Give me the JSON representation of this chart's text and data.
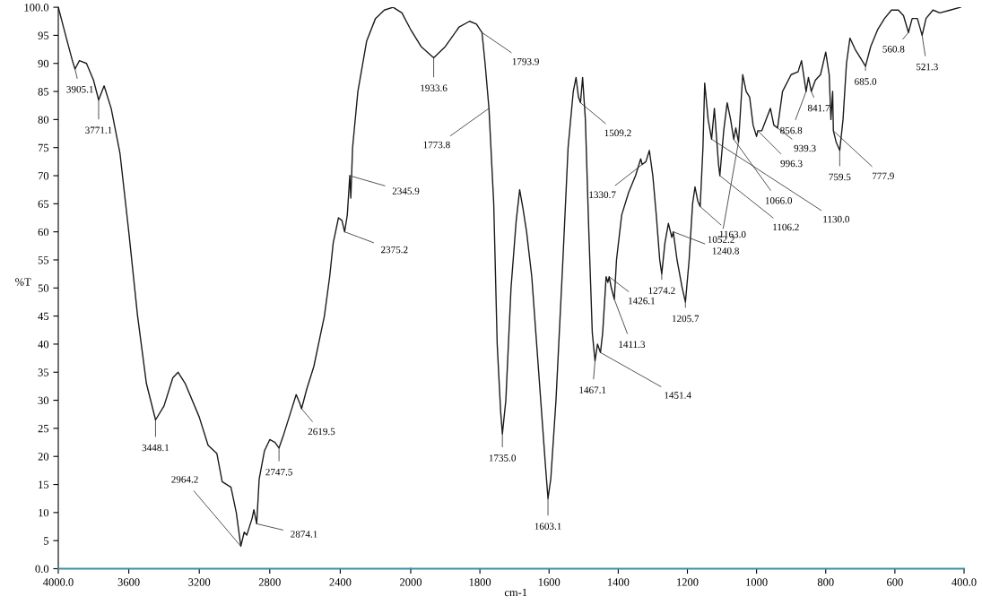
{
  "chart_data": [
    {
      "type": "line",
      "ylabel": "%T",
      "x": [
        4000,
        3950,
        3920,
        3905.1,
        3880,
        3840,
        3800,
        3771.1,
        3740,
        3700,
        3650,
        3600,
        3550,
        3500,
        3448.1,
        3400,
        3350,
        3320,
        3280,
        3200,
        3150,
        3100,
        3070,
        3020,
        2990,
        2964.2,
        2945,
        2930,
        2900,
        2890,
        2874.1,
        2860,
        2830,
        2800,
        2770,
        2747.5,
        2720,
        2680,
        2650,
        2630,
        2619.5,
        2590,
        2550,
        2510,
        2490,
        2460,
        2440,
        2410,
        2390,
        2375.2,
        2360,
        2345.9,
        2340,
        2330,
        2300,
        2250,
        2200,
        2150,
        2100,
        2050,
        2000
      ],
      "series": [
        {
          "color": "#1a1a1a",
          "values": [
            100,
            94,
            90.5,
            89,
            90.5,
            90,
            87,
            83.5,
            86,
            82,
            74,
            60,
            45,
            33,
            26.5,
            29,
            34,
            35,
            33,
            27,
            22,
            20.5,
            15.5,
            14.5,
            10,
            4,
            6.5,
            6,
            9,
            10.5,
            8,
            16,
            21,
            23,
            22.5,
            21.5,
            24,
            28,
            31,
            29.5,
            28.5,
            32,
            36,
            42,
            45,
            52,
            58,
            62.5,
            62,
            60,
            63,
            70,
            66,
            75,
            85,
            94,
            98,
            99.5,
            100,
            99,
            96
          ]
        }
      ],
      "xlim": [
        4000,
        2000
      ],
      "xticks": [
        {
          "value": 4000,
          "label": "4000.0"
        },
        3600,
        3200,
        2800,
        2400
      ],
      "ylim": [
        0,
        100
      ],
      "yticks": [
        {
          "value": 0,
          "label": "0.0"
        },
        5,
        10,
        15,
        20,
        25,
        30,
        35,
        40,
        45,
        50,
        55,
        60,
        65,
        70,
        75,
        80,
        85,
        90,
        95,
        {
          "value": 100,
          "label": "100.0"
        }
      ],
      "marker": "none",
      "line_style": "solid",
      "grid": false,
      "legend": false,
      "annotations": [
        {
          "text": "3905.1",
          "x": 3905.1,
          "y": 89
        },
        {
          "text": "3771.1",
          "x": 3771.1,
          "y": 83.5
        },
        {
          "text": "3448.1",
          "x": 3448.1,
          "y": 26.5
        },
        {
          "text": "2964.2",
          "x": 2964.2,
          "y": 4
        },
        {
          "text": "2874.1",
          "x": 2874.1,
          "y": 8
        },
        {
          "text": "2747.5",
          "x": 2747.5,
          "y": 21.5
        },
        {
          "text": "2619.5",
          "x": 2619.5,
          "y": 28.5
        },
        {
          "text": "2375.2",
          "x": 2375.2,
          "y": 60
        },
        {
          "text": "2345.9",
          "x": 2345.9,
          "y": 70
        }
      ]
    },
    {
      "type": "line",
      "xlabel": "cm-1",
      "tick_labels": "x",
      "x": [
        2000,
        1970,
        1933.6,
        1900,
        1860,
        1830,
        1810,
        1793.9,
        1785,
        1773.8,
        1760,
        1750,
        1740,
        1735.0,
        1725,
        1710,
        1695,
        1685,
        1675,
        1665,
        1650,
        1630,
        1610,
        1603.1,
        1595,
        1580,
        1560,
        1545,
        1530,
        1522,
        1515,
        1509.2,
        1503,
        1495,
        1485,
        1475,
        1467.1,
        1460,
        1451.4,
        1445,
        1435,
        1430,
        1426.1,
        1420,
        1411.3,
        1405,
        1390,
        1370,
        1350,
        1335,
        1330.7,
        1320,
        1310,
        1300,
        1290,
        1280,
        1274.2,
        1265,
        1255,
        1245,
        1240.8,
        1230,
        1215,
        1205.7,
        1195,
        1185,
        1178,
        1170,
        1163.0,
        1155,
        1150,
        1140,
        1130.0,
        1122,
        1110,
        1106.2,
        1095,
        1085,
        1075,
        1066.0,
        1060,
        1052.2,
        1040,
        1030,
        1020,
        1010,
        1000,
        996.3,
        985,
        960,
        950,
        939.3,
        925,
        900,
        880,
        870,
        856.8,
        850,
        841.7,
        830,
        815,
        800,
        790,
        785,
        780,
        777.9,
        770,
        759.5,
        750,
        740,
        730,
        715,
        700,
        685.0,
        670,
        650,
        630,
        610,
        590,
        575,
        560.8,
        550,
        535,
        521.3,
        510,
        490,
        470,
        440,
        410
      ],
      "series": [
        {
          "color": "#1a1a1a",
          "values": [
            96,
            93,
            91,
            93,
            96.5,
            97.5,
            97,
            95.5,
            90,
            82,
            65,
            40,
            28,
            24,
            30,
            50,
            62,
            67.5,
            64,
            60,
            52,
            35,
            18,
            12.5,
            16,
            30,
            55,
            75,
            85,
            87.5,
            84,
            83,
            87.5,
            80,
            60,
            42,
            37,
            40,
            38.5,
            42,
            52,
            51,
            52,
            50,
            48,
            55,
            63,
            67,
            70,
            73,
            72,
            72.5,
            74.5,
            70,
            63,
            55,
            52.5,
            58,
            61.5,
            59,
            60,
            55,
            50,
            47.5,
            55,
            65,
            68,
            65.5,
            64.5,
            75,
            86.5,
            80,
            76.5,
            82,
            72,
            70,
            78,
            83,
            80,
            76.5,
            78.5,
            76,
            88,
            85,
            84,
            79,
            77,
            78,
            78,
            82,
            79,
            78.5,
            85,
            88,
            88.5,
            90.5,
            85,
            87.5,
            85,
            87,
            88,
            92,
            88,
            80,
            85,
            78,
            76,
            74.5,
            80,
            90,
            94.5,
            92.5,
            91,
            89.5,
            93,
            96,
            98,
            99.5,
            99.5,
            98.5,
            95.5,
            98,
            98,
            95,
            98,
            99.5,
            99,
            99.5,
            100
          ]
        }
      ],
      "xlim": [
        2000,
        400
      ],
      "xticks": [
        2000,
        1800,
        1600,
        1400,
        1200,
        1000,
        800,
        600,
        {
          "value": 400,
          "label": "400.0"
        }
      ],
      "ylim": [
        0,
        100
      ],
      "marker": "none",
      "line_style": "solid",
      "grid": false,
      "legend": false,
      "annotations": [
        {
          "text": "1933.6",
          "x": 1933.6,
          "y": 91
        },
        {
          "text": "1793.9",
          "x": 1793.9,
          "y": 95.5
        },
        {
          "text": "1773.8",
          "x": 1773.8,
          "y": 82
        },
        {
          "text": "1735.0",
          "x": 1735.0,
          "y": 24
        },
        {
          "text": "1603.1",
          "x": 1603.1,
          "y": 12.5
        },
        {
          "text": "1509.2",
          "x": 1509.2,
          "y": 83
        },
        {
          "text": "1330.7",
          "x": 1330.7,
          "y": 72
        },
        {
          "text": "1426.1",
          "x": 1426.1,
          "y": 52
        },
        {
          "text": "1411.3",
          "x": 1411.3,
          "y": 48
        },
        {
          "text": "1467.1",
          "x": 1467.1,
          "y": 37
        },
        {
          "text": "1451.4",
          "x": 1451.4,
          "y": 38.5
        },
        {
          "text": "1274.2",
          "x": 1274.2,
          "y": 52.5
        },
        {
          "text": "1205.7",
          "x": 1205.7,
          "y": 47.5
        },
        {
          "text": "1240.8",
          "x": 1240.8,
          "y": 60
        },
        {
          "text": "1163.0",
          "x": 1163.0,
          "y": 64.5
        },
        {
          "text": "1052.2",
          "x": 1052.2,
          "y": 76
        },
        {
          "text": "1106.2",
          "x": 1106.2,
          "y": 70
        },
        {
          "text": "1130.0",
          "x": 1130.0,
          "y": 76.5
        },
        {
          "text": "1066.0",
          "x": 1066.0,
          "y": 76.5
        },
        {
          "text": "996.3",
          "x": 996.3,
          "y": 78
        },
        {
          "text": "939.3",
          "x": 939.3,
          "y": 78.5
        },
        {
          "text": "856.8",
          "x": 856.8,
          "y": 85
        },
        {
          "text": "841.7",
          "x": 841.7,
          "y": 85
        },
        {
          "text": "777.9",
          "x": 777.9,
          "y": 78
        },
        {
          "text": "759.5",
          "x": 759.5,
          "y": 74.5
        },
        {
          "text": "685.0",
          "x": 685.0,
          "y": 89.5
        },
        {
          "text": "560.8",
          "x": 560.8,
          "y": 95.5
        },
        {
          "text": "521.3",
          "x": 521.3,
          "y": 95
        }
      ]
    }
  ]
}
